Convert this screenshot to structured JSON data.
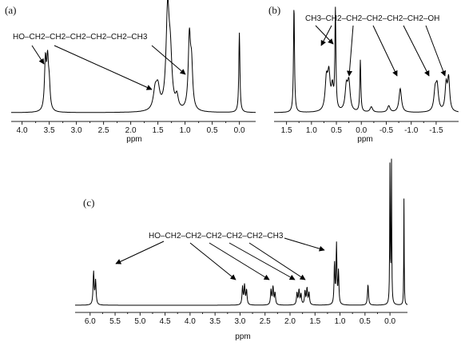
{
  "chart_data": [
    {
      "type": "line",
      "label": "(a)",
      "xlabel": "ppm",
      "xlim": [
        4.2,
        -0.3
      ],
      "xticks": [
        "4.0",
        "3.5",
        "3.0",
        "2.5",
        "2.0",
        "1.5",
        "1.0",
        "0.5",
        "0.0"
      ],
      "annotation": "HO–CH2–CH2–CH2–CH2–CH2–CH3",
      "peaks": [
        {
          "ppm": 3.57,
          "height": 0.48,
          "width": 0.02
        },
        {
          "ppm": 3.53,
          "height": 0.45,
          "width": 0.02
        },
        {
          "ppm": 3.5,
          "height": 0.22,
          "width": 0.02
        },
        {
          "ppm": 1.55,
          "height": 0.18,
          "width": 0.04
        },
        {
          "ppm": 1.5,
          "height": 0.2,
          "width": 0.04
        },
        {
          "ppm": 1.32,
          "height": 0.95,
          "width": 0.035
        },
        {
          "ppm": 1.27,
          "height": 0.45,
          "width": 0.035
        },
        {
          "ppm": 1.15,
          "height": 0.12,
          "width": 0.03
        },
        {
          "ppm": 0.92,
          "height": 0.7,
          "width": 0.025
        },
        {
          "ppm": 0.88,
          "height": 0.4,
          "width": 0.025
        },
        {
          "ppm": 0.0,
          "height": 0.78,
          "width": 0.012
        }
      ]
    },
    {
      "type": "line",
      "label": "(b)",
      "xlabel": "ppm",
      "xlim": [
        1.75,
        -1.95
      ],
      "xticks": [
        "1.5",
        "1.0",
        "0.5",
        "0.0",
        "-0.5",
        "-1.0",
        "-1.5"
      ],
      "annotation": "CH3–CH2–CH2–CH2–CH2–CH2–OH",
      "peaks": [
        {
          "ppm": 1.35,
          "height": 1.0,
          "width": 0.012
        },
        {
          "ppm": 0.7,
          "height": 0.28,
          "width": 0.03
        },
        {
          "ppm": 0.65,
          "height": 0.32,
          "width": 0.03
        },
        {
          "ppm": 0.58,
          "height": 0.2,
          "width": 0.025
        },
        {
          "ppm": 0.52,
          "height": 0.92,
          "width": 0.012
        },
        {
          "ppm": 0.3,
          "height": 0.22,
          "width": 0.03
        },
        {
          "ppm": 0.25,
          "height": 0.26,
          "width": 0.03
        },
        {
          "ppm": 0.02,
          "height": 0.48,
          "width": 0.012
        },
        {
          "ppm": -0.2,
          "height": 0.05,
          "width": 0.03
        },
        {
          "ppm": -0.55,
          "height": 0.06,
          "width": 0.03
        },
        {
          "ppm": -0.78,
          "height": 0.22,
          "width": 0.03
        },
        {
          "ppm": -1.48,
          "height": 0.18,
          "width": 0.03
        },
        {
          "ppm": -1.52,
          "height": 0.22,
          "width": 0.03
        },
        {
          "ppm": -1.75,
          "height": 0.3,
          "width": 0.025
        },
        {
          "ppm": -1.7,
          "height": 0.24,
          "width": 0.025
        }
      ]
    },
    {
      "type": "line",
      "label": "(c)",
      "xlabel": "ppm",
      "xlim": [
        6.3,
        -0.35
      ],
      "xticks": [
        "6.0",
        "5.5",
        "5.0",
        "4.5",
        "4.0",
        "3.5",
        "3.0",
        "2.5",
        "2.0",
        "1.5",
        "1.0",
        "0.5",
        "0.0"
      ],
      "annotation": "HO–CH2–CH2–CH2–CH2–CH2–CH3",
      "peaks": [
        {
          "ppm": 5.93,
          "height": 0.22,
          "width": 0.012
        },
        {
          "ppm": 5.89,
          "height": 0.16,
          "width": 0.012
        },
        {
          "ppm": 2.95,
          "height": 0.12,
          "width": 0.012
        },
        {
          "ppm": 2.91,
          "height": 0.13,
          "width": 0.012
        },
        {
          "ppm": 2.87,
          "height": 0.1,
          "width": 0.012
        },
        {
          "ppm": 2.38,
          "height": 0.1,
          "width": 0.012
        },
        {
          "ppm": 2.34,
          "height": 0.12,
          "width": 0.012
        },
        {
          "ppm": 2.3,
          "height": 0.08,
          "width": 0.012
        },
        {
          "ppm": 1.86,
          "height": 0.08,
          "width": 0.012
        },
        {
          "ppm": 1.82,
          "height": 0.1,
          "width": 0.012
        },
        {
          "ppm": 1.78,
          "height": 0.07,
          "width": 0.012
        },
        {
          "ppm": 1.7,
          "height": 0.09,
          "width": 0.012
        },
        {
          "ppm": 1.66,
          "height": 0.11,
          "width": 0.012
        },
        {
          "ppm": 1.62,
          "height": 0.08,
          "width": 0.012
        },
        {
          "ppm": 1.11,
          "height": 0.28,
          "width": 0.01
        },
        {
          "ppm": 1.07,
          "height": 0.4,
          "width": 0.01
        },
        {
          "ppm": 1.03,
          "height": 0.22,
          "width": 0.01
        },
        {
          "ppm": 0.44,
          "height": 0.14,
          "width": 0.012
        },
        {
          "ppm": 0.0,
          "height": 1.0,
          "width": 0.006
        },
        {
          "ppm": -0.03,
          "height": 0.95,
          "width": 0.006
        },
        {
          "ppm": -0.28,
          "height": 0.72,
          "width": 0.005
        }
      ]
    }
  ]
}
